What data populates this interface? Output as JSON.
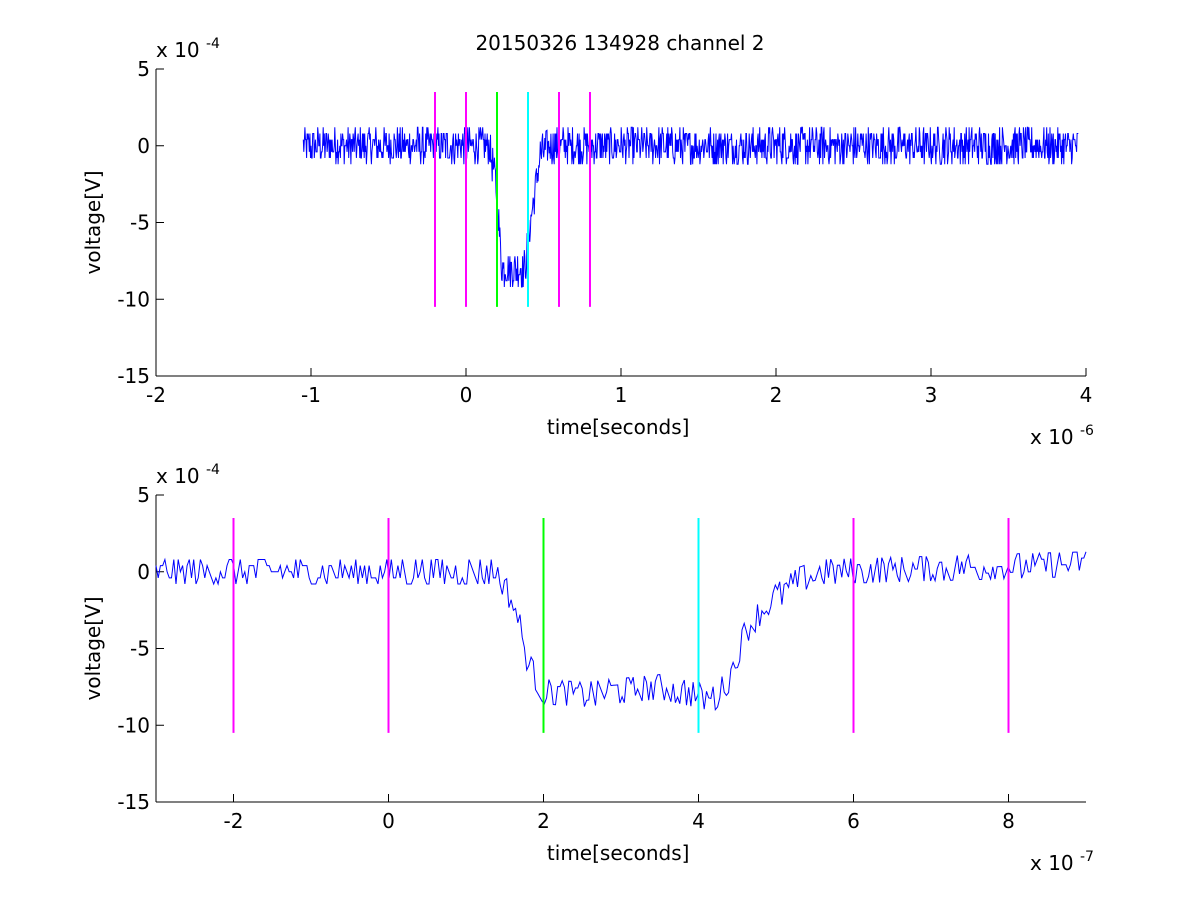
{
  "figure_title": "20150326 134928 channel 2",
  "chart_data": [
    {
      "type": "line",
      "title": "20150326 134928 channel 2",
      "xlabel": "time[seconds]",
      "ylabel": "voltage[V]",
      "x_multiplier_label": "x 10",
      "x_multiplier_exp": "-6",
      "y_multiplier_label": "x 10",
      "y_multiplier_exp": "-4",
      "xlim": [
        -2,
        4
      ],
      "ylim": [
        -15,
        5
      ],
      "xticks": [
        -2,
        -1,
        0,
        1,
        2,
        3,
        4
      ],
      "yticks": [
        -15,
        -10,
        -5,
        0,
        5
      ],
      "grid": false,
      "vlines": [
        {
          "x": -0.2,
          "color": "#ff00ff"
        },
        {
          "x": 0.0,
          "color": "#ff00ff"
        },
        {
          "x": 0.2,
          "color": "#00ff00"
        },
        {
          "x": 0.4,
          "color": "#00ffff"
        },
        {
          "x": 0.6,
          "color": "#ff00ff"
        },
        {
          "x": 0.8,
          "color": "#ff00ff"
        }
      ],
      "vline_ylim": [
        -10.5,
        3.5
      ],
      "series": [
        {
          "color": "#0000ff",
          "x_start": -1.05,
          "x_end": 3.95,
          "points": [
            [
              -1.05,
              0
            ],
            [
              0.15,
              0
            ],
            [
              0.2,
              -3
            ],
            [
              0.23,
              -8
            ],
            [
              0.38,
              -8
            ],
            [
              0.43,
              -4
            ],
            [
              0.48,
              -0.5
            ],
            [
              0.55,
              0
            ],
            [
              3.95,
              0
            ]
          ],
          "noise_amplitude": 1.2
        }
      ]
    },
    {
      "type": "line",
      "xlabel": "time[seconds]",
      "ylabel": "voltage[V]",
      "x_multiplier_label": "x 10",
      "x_multiplier_exp": "-7",
      "y_multiplier_label": "x 10",
      "y_multiplier_exp": "-4",
      "xlim": [
        -3,
        9
      ],
      "ylim": [
        -15,
        5
      ],
      "xticks": [
        -2,
        0,
        2,
        4,
        6,
        8
      ],
      "yticks": [
        -15,
        -10,
        -5,
        0,
        5
      ],
      "grid": false,
      "vlines": [
        {
          "x": -2,
          "color": "#ff00ff"
        },
        {
          "x": 0,
          "color": "#ff00ff"
        },
        {
          "x": 2,
          "color": "#00ff00"
        },
        {
          "x": 4,
          "color": "#00ffff"
        },
        {
          "x": 6,
          "color": "#ff00ff"
        },
        {
          "x": 8,
          "color": "#ff00ff"
        }
      ],
      "vline_ylim": [
        -10.5,
        3.5
      ],
      "series": [
        {
          "color": "#0000ff",
          "x_start": -3,
          "x_end": 9,
          "points": [
            [
              -3,
              0
            ],
            [
              1.4,
              0
            ],
            [
              1.65,
              -2.5
            ],
            [
              1.8,
              -6
            ],
            [
              2.0,
              -7.8
            ],
            [
              2.5,
              -8
            ],
            [
              3.5,
              -7.5
            ],
            [
              4.2,
              -8.3
            ],
            [
              4.4,
              -7
            ],
            [
              4.6,
              -4
            ],
            [
              4.9,
              -2
            ],
            [
              5.3,
              -0.5
            ],
            [
              5.6,
              0
            ],
            [
              9,
              0.5
            ]
          ],
          "noise_amplitude": 1.0
        }
      ]
    }
  ]
}
